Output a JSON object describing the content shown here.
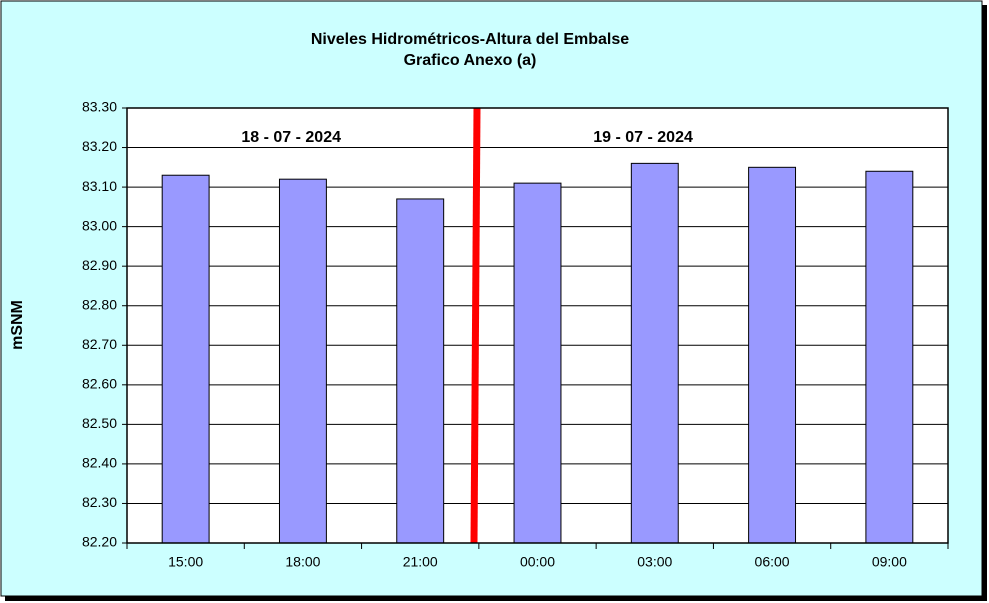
{
  "chart_data": {
    "type": "bar",
    "title": "Niveles Hidrométricos-Altura del Embalse",
    "subtitle": "Grafico Anexo (a)",
    "y_label": "mSNM",
    "annotations": [
      "18 - 07 - 2024",
      "19 - 07 - 2024"
    ],
    "categories": [
      "15:00",
      "18:00",
      "21:00",
      "00:00",
      "03:00",
      "06:00",
      "09:00"
    ],
    "values": [
      83.13,
      83.12,
      83.07,
      83.11,
      83.16,
      83.15,
      83.14
    ],
    "color": "#9999ff",
    "ylim": [
      82.2,
      83.3
    ],
    "yticks": [
      {
        "value": 82.2,
        "label": "82.20"
      },
      {
        "value": 82.3,
        "label": "82.30"
      },
      {
        "value": 82.4,
        "label": "82.40"
      },
      {
        "value": 82.5,
        "label": "82.50"
      },
      {
        "value": 82.6,
        "label": "82.60"
      },
      {
        "value": 82.7,
        "label": "82.70"
      },
      {
        "value": 82.8,
        "label": "82.80"
      },
      {
        "value": 82.9,
        "label": "82.90"
      },
      {
        "value": 83.0,
        "label": "83.00"
      },
      {
        "value": 83.1,
        "label": "83.10"
      },
      {
        "value": 83.2,
        "label": "83.20"
      },
      {
        "value": 83.3,
        "label": "83.30"
      }
    ],
    "grid": true
  }
}
